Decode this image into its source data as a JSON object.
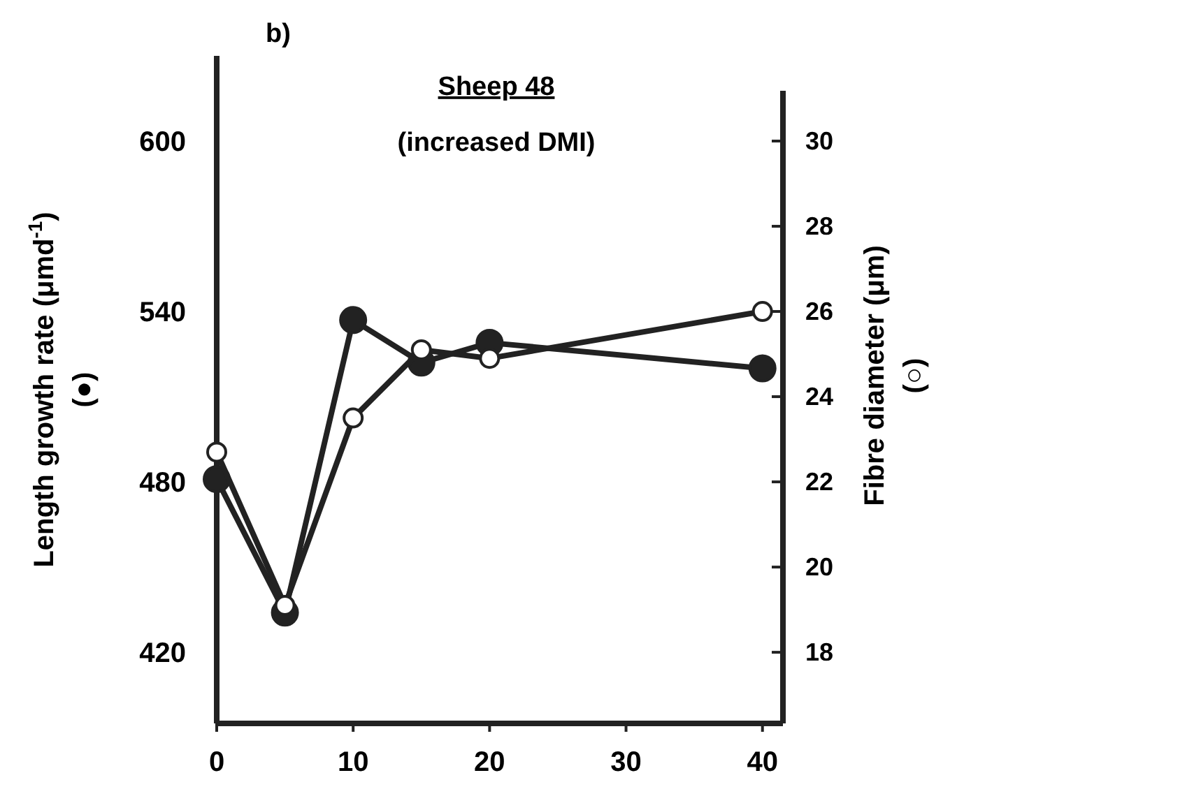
{
  "chart_data": {
    "type": "line",
    "title": "Sheep 48",
    "subtitle": "(increased DMI)",
    "ylabel": "Length growth rate (μmd$^{-1}$) (●)",
    "y2label": "Fibre diameter (μm) (○)",
    "annotations": [
      "b)"
    ],
    "x": [
      0,
      5,
      10,
      15,
      20,
      40
    ],
    "series": [
      {
        "color": "#222222",
        "values": [
          481,
          434,
          537,
          522,
          529,
          520
        ]
      },
      {
        "color": "#ffffff",
        "axis": "y2",
        "values": [
          22.7,
          19.1,
          23.5,
          25.1,
          24.9,
          26.0
        ]
      }
    ],
    "xlim": [
      0,
      41.5
    ],
    "xticks": [
      0,
      10,
      20,
      30,
      40
    ],
    "ylim": [
      395,
      630
    ],
    "yticks": [
      420,
      480,
      540,
      600
    ],
    "y2lim": [
      16.33,
      32
    ],
    "y2ticks": [
      18,
      20,
      22,
      24,
      26,
      28,
      30
    ],
    "grid": false,
    "marker": "circle",
    "line_style": "solid"
  }
}
